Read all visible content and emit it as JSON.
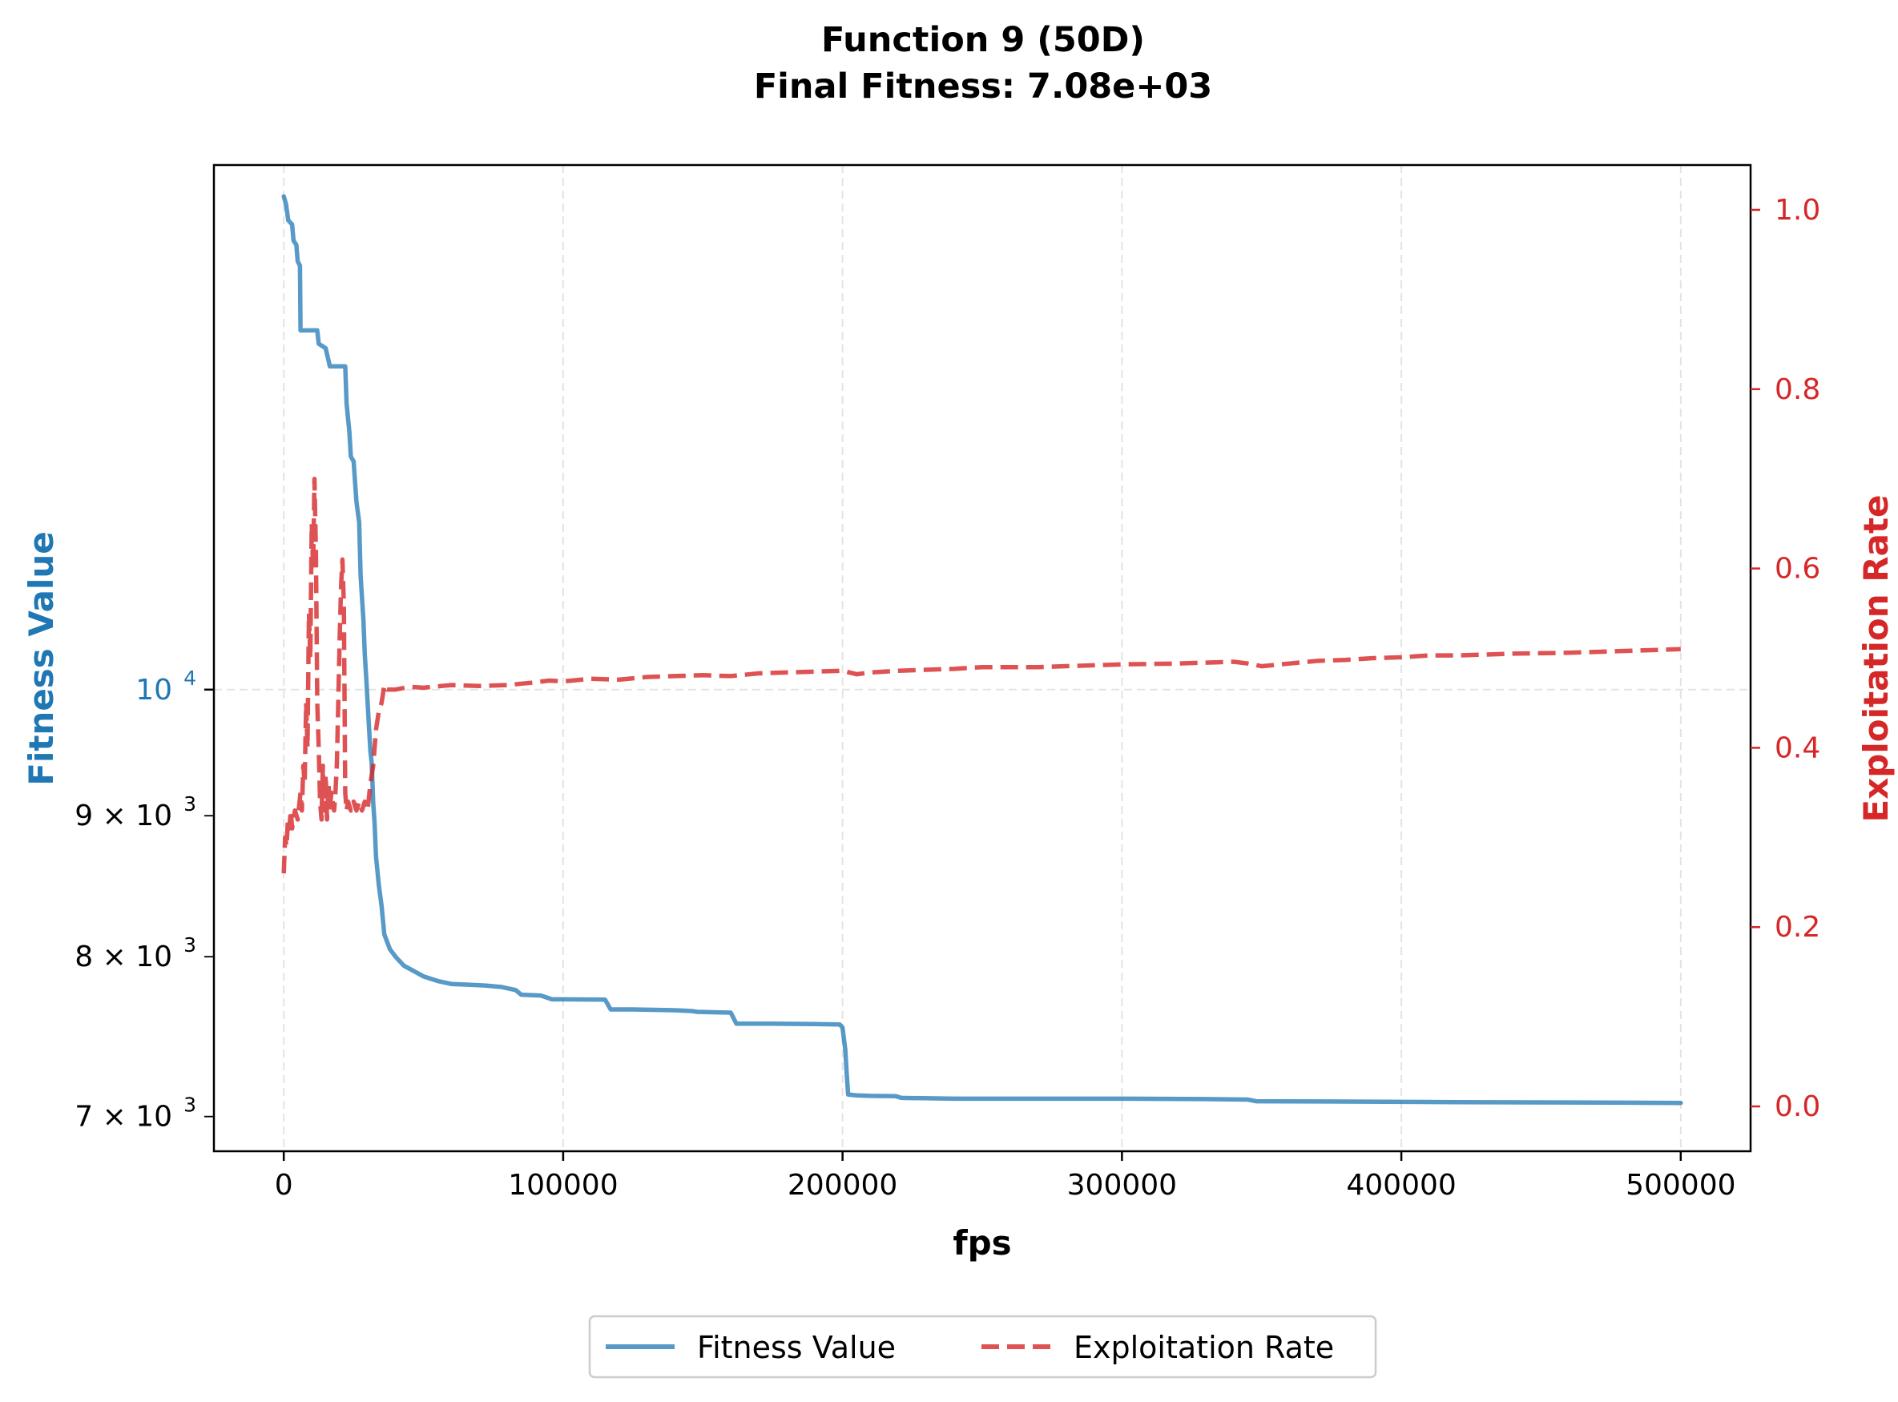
{
  "chart_data": {
    "type": "line",
    "title_line1": "Function 9 (50D)",
    "title_line2": "Final Fitness: 7.08e+03",
    "xlabel": "fps",
    "ylabel_left": "Fitness Value",
    "ylabel_right": "Exploitation Rate",
    "xlim": [
      -25000,
      525000
    ],
    "ylim_left": [
      6800,
      15500
    ],
    "y_left_scale": "log",
    "ylim_right": [
      -0.05,
      1.05
    ],
    "grid": true,
    "legend_position": "bottom-center",
    "x_ticks": [
      0,
      100000,
      200000,
      300000,
      400000,
      500000
    ],
    "x_tick_labels": [
      "0",
      "100000",
      "200000",
      "300000",
      "400000",
      "500000"
    ],
    "y_left_ticks": [
      {
        "value": 10000,
        "base": "10",
        "exp": "4",
        "color": "#1f77b4"
      },
      {
        "value": 9000,
        "base": "9 × 10",
        "exp": "3",
        "color": "#000000"
      },
      {
        "value": 8000,
        "base": "8 × 10",
        "exp": "3",
        "color": "#000000"
      },
      {
        "value": 7000,
        "base": "7 × 10",
        "exp": "3",
        "color": "#000000"
      }
    ],
    "y_right_ticks": [
      0.0,
      0.2,
      0.4,
      0.6,
      0.8,
      1.0
    ],
    "y_right_tick_labels": [
      "0.0",
      "0.2",
      "0.4",
      "0.6",
      "0.8",
      "1.0"
    ],
    "colors": {
      "fitness": "#1f77b4",
      "exploitation": "#d62728",
      "left_axis_label": "#1f77b4",
      "right_axis": "#d62728",
      "grid": "#cccccc"
    },
    "series": [
      {
        "name": "Fitness Value",
        "axis": "left",
        "style": "solid",
        "points": [
          [
            0,
            15100
          ],
          [
            800,
            15000
          ],
          [
            1600,
            14800
          ],
          [
            3000,
            14750
          ],
          [
            3500,
            14550
          ],
          [
            4500,
            14500
          ],
          [
            5000,
            14300
          ],
          [
            5800,
            14250
          ],
          [
            6000,
            13500
          ],
          [
            8000,
            13500
          ],
          [
            11000,
            13500
          ],
          [
            12000,
            13500
          ],
          [
            12500,
            13350
          ],
          [
            15000,
            13300
          ],
          [
            16500,
            13100
          ],
          [
            22000,
            13100
          ],
          [
            22500,
            12700
          ],
          [
            23500,
            12400
          ],
          [
            24000,
            12150
          ],
          [
            25000,
            12100
          ],
          [
            25500,
            11900
          ],
          [
            26000,
            11700
          ],
          [
            27000,
            11500
          ],
          [
            27500,
            11000
          ],
          [
            28000,
            10800
          ],
          [
            28500,
            10600
          ],
          [
            29000,
            10300
          ],
          [
            29500,
            10100
          ],
          [
            30000,
            9900
          ],
          [
            30500,
            9700
          ],
          [
            31000,
            9500
          ],
          [
            31500,
            9400
          ],
          [
            32000,
            9100
          ],
          [
            32500,
            8950
          ],
          [
            33000,
            8700
          ],
          [
            34000,
            8500
          ],
          [
            35000,
            8350
          ],
          [
            36000,
            8150
          ],
          [
            38000,
            8050
          ],
          [
            40000,
            8000
          ],
          [
            43000,
            7940
          ],
          [
            46000,
            7910
          ],
          [
            50000,
            7870
          ],
          [
            55000,
            7840
          ],
          [
            60000,
            7820
          ],
          [
            66000,
            7815
          ],
          [
            72000,
            7810
          ],
          [
            78000,
            7800
          ],
          [
            83000,
            7780
          ],
          [
            85000,
            7750
          ],
          [
            92000,
            7745
          ],
          [
            96000,
            7720
          ],
          [
            100000,
            7720
          ],
          [
            115000,
            7718
          ],
          [
            117000,
            7655
          ],
          [
            125000,
            7655
          ],
          [
            140000,
            7650
          ],
          [
            146000,
            7645
          ],
          [
            148000,
            7640
          ],
          [
            160000,
            7635
          ],
          [
            162000,
            7565
          ],
          [
            175000,
            7565
          ],
          [
            190000,
            7562
          ],
          [
            199000,
            7560
          ],
          [
            200000,
            7540
          ],
          [
            201000,
            7400
          ],
          [
            201500,
            7250
          ],
          [
            202000,
            7130
          ],
          [
            205000,
            7125
          ],
          [
            210000,
            7122
          ],
          [
            219000,
            7120
          ],
          [
            221000,
            7110
          ],
          [
            240000,
            7105
          ],
          [
            260000,
            7105
          ],
          [
            300000,
            7105
          ],
          [
            330000,
            7103
          ],
          [
            345000,
            7100
          ],
          [
            348000,
            7090
          ],
          [
            380000,
            7088
          ],
          [
            420000,
            7085
          ],
          [
            460000,
            7083
          ],
          [
            500000,
            7080
          ]
        ]
      },
      {
        "name": "Exploitation Rate",
        "axis": "right",
        "style": "dashed",
        "points": [
          [
            0,
            0.26
          ],
          [
            500,
            0.3
          ],
          [
            1000,
            0.29
          ],
          [
            1500,
            0.32
          ],
          [
            2000,
            0.31
          ],
          [
            2500,
            0.33
          ],
          [
            3000,
            0.31
          ],
          [
            3500,
            0.32
          ],
          [
            4000,
            0.33
          ],
          [
            5000,
            0.32
          ],
          [
            6000,
            0.35
          ],
          [
            6500,
            0.33
          ],
          [
            7000,
            0.38
          ],
          [
            7500,
            0.36
          ],
          [
            8000,
            0.45
          ],
          [
            8500,
            0.4
          ],
          [
            9000,
            0.55
          ],
          [
            9500,
            0.5
          ],
          [
            10000,
            0.65
          ],
          [
            10500,
            0.6
          ],
          [
            11000,
            0.7
          ],
          [
            11500,
            0.62
          ],
          [
            12000,
            0.45
          ],
          [
            12500,
            0.4
          ],
          [
            13000,
            0.34
          ],
          [
            13500,
            0.32
          ],
          [
            14000,
            0.38
          ],
          [
            14500,
            0.33
          ],
          [
            15000,
            0.37
          ],
          [
            15500,
            0.32
          ],
          [
            16000,
            0.36
          ],
          [
            16500,
            0.33
          ],
          [
            17000,
            0.35
          ],
          [
            17500,
            0.34
          ],
          [
            18000,
            0.33
          ],
          [
            18500,
            0.35
          ],
          [
            19000,
            0.38
          ],
          [
            19500,
            0.45
          ],
          [
            20000,
            0.52
          ],
          [
            20500,
            0.58
          ],
          [
            21000,
            0.61
          ],
          [
            21500,
            0.56
          ],
          [
            22000,
            0.35
          ],
          [
            22500,
            0.33
          ],
          [
            23000,
            0.34
          ],
          [
            24000,
            0.33
          ],
          [
            25000,
            0.34
          ],
          [
            26000,
            0.33
          ],
          [
            27000,
            0.34
          ],
          [
            28000,
            0.33
          ],
          [
            29000,
            0.34
          ],
          [
            30000,
            0.33
          ],
          [
            31000,
            0.36
          ],
          [
            32000,
            0.38
          ],
          [
            33000,
            0.42
          ],
          [
            34000,
            0.44
          ],
          [
            35000,
            0.45
          ],
          [
            35500,
            0.46
          ],
          [
            36000,
            0.47
          ],
          [
            37000,
            0.465
          ],
          [
            40000,
            0.465
          ],
          [
            45000,
            0.468
          ],
          [
            50000,
            0.467
          ],
          [
            60000,
            0.47
          ],
          [
            70000,
            0.469
          ],
          [
            80000,
            0.47
          ],
          [
            90000,
            0.473
          ],
          [
            95000,
            0.475
          ],
          [
            100000,
            0.474
          ],
          [
            110000,
            0.477
          ],
          [
            120000,
            0.476
          ],
          [
            130000,
            0.479
          ],
          [
            140000,
            0.48
          ],
          [
            150000,
            0.481
          ],
          [
            160000,
            0.48
          ],
          [
            170000,
            0.483
          ],
          [
            180000,
            0.484
          ],
          [
            190000,
            0.485
          ],
          [
            200000,
            0.486
          ],
          [
            205000,
            0.482
          ],
          [
            210000,
            0.484
          ],
          [
            220000,
            0.486
          ],
          [
            230000,
            0.487
          ],
          [
            240000,
            0.488
          ],
          [
            250000,
            0.49
          ],
          [
            270000,
            0.49
          ],
          [
            300000,
            0.493
          ],
          [
            320000,
            0.494
          ],
          [
            340000,
            0.496
          ],
          [
            345000,
            0.494
          ],
          [
            350000,
            0.491
          ],
          [
            360000,
            0.494
          ],
          [
            370000,
            0.497
          ],
          [
            380000,
            0.498
          ],
          [
            390000,
            0.5
          ],
          [
            400000,
            0.501
          ],
          [
            410000,
            0.503
          ],
          [
            420000,
            0.503
          ],
          [
            440000,
            0.505
          ],
          [
            460000,
            0.506
          ],
          [
            480000,
            0.508
          ],
          [
            500000,
            0.51
          ]
        ]
      }
    ]
  },
  "legend": {
    "items": [
      {
        "label": "Fitness Value"
      },
      {
        "label": "Exploitation Rate"
      }
    ]
  }
}
